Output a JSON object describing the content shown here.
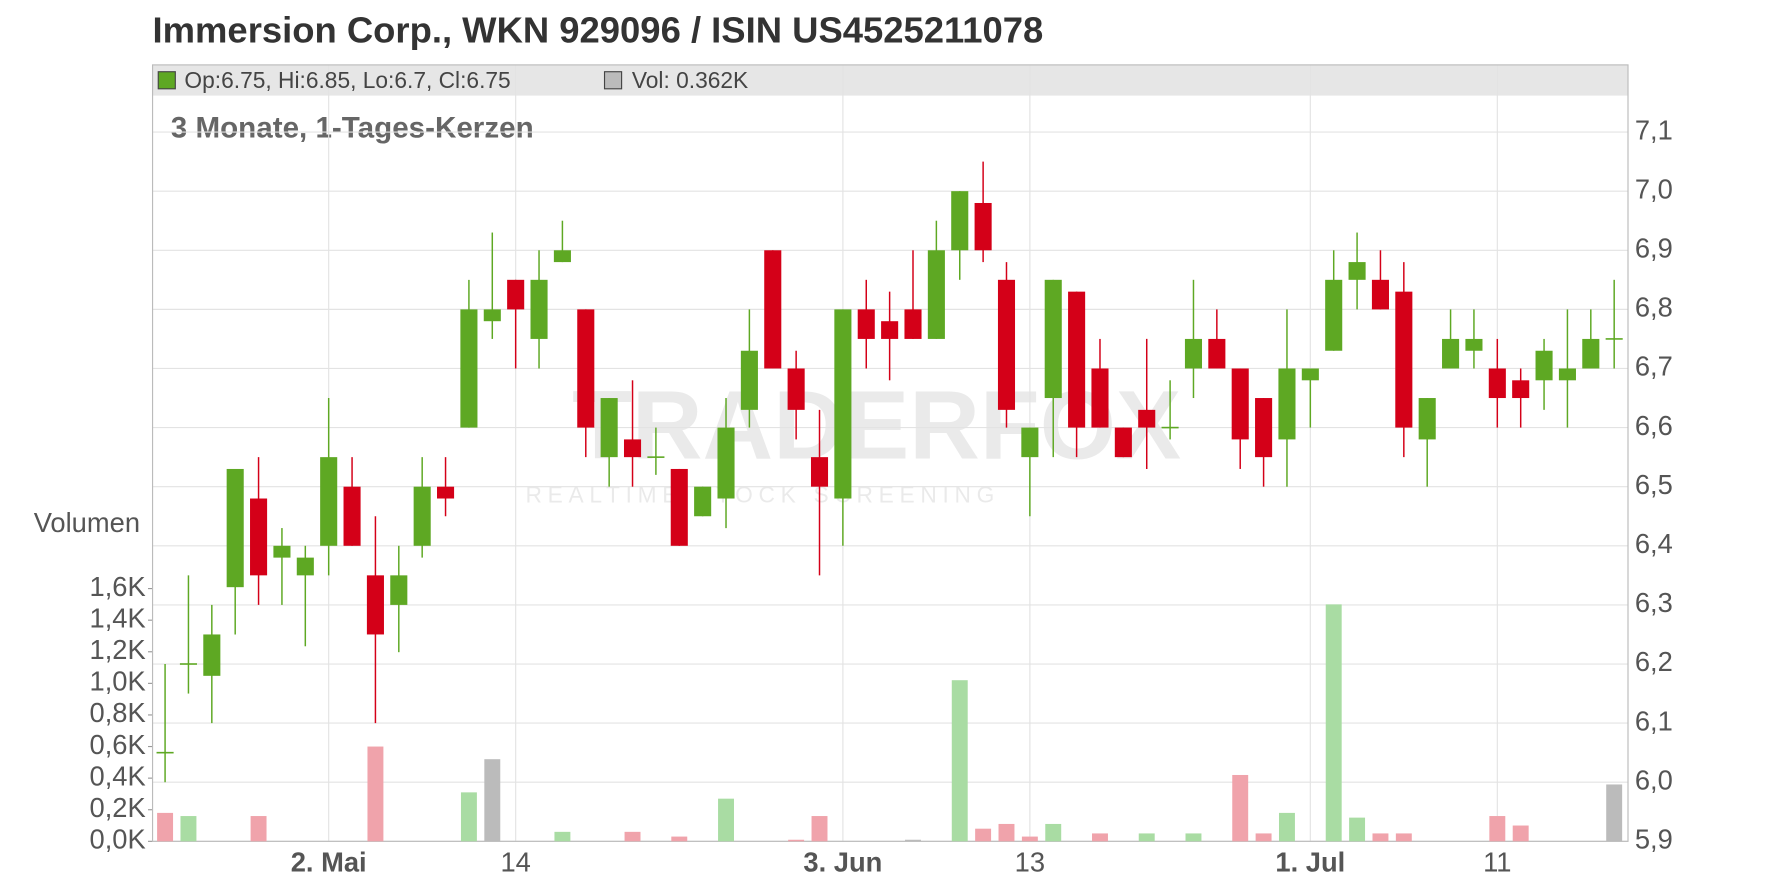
{
  "chart_data": {
    "type": "candlestick",
    "title": "Immersion Corp., WKN 929096 / ISIN US4525211078",
    "subtitle": "3 Monate, 1-Tages-Kerzen",
    "legend_price": "Op:6.75, Hi:6.85, Lo:6.7, Cl:6.75",
    "legend_volume": "Vol: 0.362K",
    "volume_axis_label": "Volumen",
    "watermark": "TRADERFOX",
    "watermark_tagline": "REALTIME STOCK SCREENING",
    "up_color": "#5ea823",
    "down_color": "#d40018",
    "neutral_color": "#bbbbbb",
    "categories": [
      null,
      null,
      null,
      null,
      null,
      null,
      null,
      "2. Mai",
      null,
      null,
      null,
      null,
      null,
      null,
      null,
      "14",
      null,
      null,
      null,
      null,
      null,
      null,
      null,
      null,
      null,
      null,
      null,
      null,
      null,
      "3. Jun",
      null,
      null,
      null,
      null,
      null,
      null,
      null,
      "13",
      null,
      null,
      null,
      null,
      null,
      null,
      null,
      null,
      null,
      null,
      null,
      "1. Jul",
      null,
      null,
      null,
      null,
      null,
      null,
      null,
      "11",
      null,
      null,
      null,
      null,
      null
    ],
    "open": [
      6.05,
      6.2,
      6.18,
      6.33,
      6.48,
      6.38,
      6.35,
      6.4,
      6.5,
      6.35,
      6.3,
      6.4,
      6.5,
      6.6,
      6.78,
      6.85,
      6.75,
      6.88,
      6.8,
      6.55,
      6.58,
      6.55,
      6.53,
      6.45,
      6.48,
      6.63,
      6.9,
      6.7,
      6.55,
      6.48,
      6.8,
      6.78,
      6.8,
      6.75,
      6.9,
      6.98,
      6.85,
      6.55,
      6.65,
      6.83,
      6.7,
      6.6,
      6.63,
      6.6,
      6.7,
      6.75,
      6.7,
      6.65,
      6.58,
      6.68,
      6.73,
      6.85,
      6.85,
      6.83,
      6.58,
      6.7,
      6.73,
      6.7,
      6.68,
      6.68,
      6.68,
      6.7,
      6.75
    ],
    "high": [
      6.2,
      6.35,
      6.3,
      6.53,
      6.55,
      6.43,
      6.4,
      6.65,
      6.55,
      6.45,
      6.4,
      6.55,
      6.55,
      6.85,
      6.93,
      6.85,
      6.9,
      6.95,
      6.8,
      6.65,
      6.68,
      6.6,
      6.53,
      6.5,
      6.65,
      6.8,
      6.9,
      6.73,
      6.63,
      6.8,
      6.85,
      6.83,
      6.9,
      6.95,
      7.0,
      7.05,
      6.88,
      6.6,
      6.85,
      6.83,
      6.75,
      6.6,
      6.75,
      6.68,
      6.85,
      6.8,
      6.7,
      6.65,
      6.8,
      6.7,
      6.9,
      6.93,
      6.9,
      6.88,
      6.65,
      6.8,
      6.8,
      6.75,
      6.7,
      6.75,
      6.8,
      6.8,
      6.85
    ],
    "low": [
      6.0,
      6.15,
      6.1,
      6.25,
      6.3,
      6.3,
      6.23,
      6.35,
      6.4,
      6.1,
      6.22,
      6.38,
      6.45,
      6.6,
      6.75,
      6.7,
      6.7,
      6.88,
      6.55,
      6.5,
      6.5,
      6.52,
      6.4,
      6.45,
      6.43,
      6.6,
      6.7,
      6.58,
      6.35,
      6.4,
      6.7,
      6.68,
      6.75,
      6.75,
      6.85,
      6.88,
      6.6,
      6.45,
      6.55,
      6.55,
      6.6,
      6.55,
      6.53,
      6.58,
      6.65,
      6.7,
      6.53,
      6.5,
      6.5,
      6.6,
      6.73,
      6.8,
      6.8,
      6.55,
      6.5,
      6.7,
      6.7,
      6.6,
      6.6,
      6.63,
      6.6,
      6.7,
      6.7
    ],
    "close": [
      6.05,
      6.2,
      6.25,
      6.53,
      6.35,
      6.4,
      6.38,
      6.55,
      6.4,
      6.25,
      6.35,
      6.5,
      6.48,
      6.8,
      6.8,
      6.8,
      6.85,
      6.9,
      6.6,
      6.65,
      6.55,
      6.55,
      6.4,
      6.5,
      6.6,
      6.73,
      6.7,
      6.63,
      6.5,
      6.8,
      6.75,
      6.75,
      6.75,
      6.9,
      7.0,
      6.9,
      6.63,
      6.6,
      6.85,
      6.6,
      6.6,
      6.55,
      6.6,
      6.6,
      6.75,
      6.7,
      6.58,
      6.55,
      6.7,
      6.7,
      6.85,
      6.88,
      6.8,
      6.6,
      6.65,
      6.75,
      6.75,
      6.65,
      6.65,
      6.73,
      6.7,
      6.75,
      6.75
    ],
    "volume": [
      0.18,
      0.16,
      0,
      0,
      0.16,
      0,
      0,
      0,
      0,
      0.6,
      0,
      0,
      0,
      0.31,
      0.52,
      0,
      0,
      0.06,
      0,
      0,
      0.06,
      0,
      0.03,
      0,
      0.27,
      0,
      0,
      0.01,
      0.16,
      0,
      0,
      0,
      0.01,
      0,
      1.02,
      0.08,
      0.11,
      0.03,
      0.11,
      0,
      0.05,
      0,
      0.05,
      0,
      0.05,
      0,
      0.42,
      0.05,
      0.18,
      0,
      1.5,
      0.15,
      0.05,
      0.05,
      0,
      0,
      0,
      0.16,
      0.1,
      0,
      0,
      0,
      0.36
    ],
    "volume_colors": [
      "#f0a3ab",
      "#a9dca3",
      "#f0a3ab",
      "#a9dca3",
      "#f0a3ab",
      "#a9dca3",
      "#a9dca3",
      "#a9dca3",
      "#f0a3ab",
      "#f0a3ab",
      "#a9dca3",
      "#a9dca3",
      "#f0a3ab",
      "#a9dca3",
      "#bbbbbb",
      "#f0a3ab",
      "#a9dca3",
      "#a9dca3",
      "#f0a3ab",
      "#a9dca3",
      "#f0a3ab",
      "#bbbbbb",
      "#f0a3ab",
      "#a9dca3",
      "#a9dca3",
      "#a9dca3",
      "#f0a3ab",
      "#f0a3ab",
      "#f0a3ab",
      "#a9dca3",
      "#f0a3ab",
      "#f0a3ab",
      "#bbbbbb",
      "#a9dca3",
      "#a9dca3",
      "#f0a3ab",
      "#f0a3ab",
      "#f0a3ab",
      "#a9dca3",
      "#f0a3ab",
      "#f0a3ab",
      "#f0a3ab",
      "#a9dca3",
      "#bbbbbb",
      "#a9dca3",
      "#f0a3ab",
      "#f0a3ab",
      "#f0a3ab",
      "#a9dca3",
      "#a9dca3",
      "#a9dca3",
      "#a9dca3",
      "#f0a3ab",
      "#f0a3ab",
      "#a9dca3",
      "#a9dca3",
      "#a9dca3",
      "#f0a3ab",
      "#f0a3ab",
      "#a9dca3",
      "#a9dca3",
      "#a9dca3",
      "#bbbbbb"
    ],
    "ylim": [
      5.9,
      7.1
    ],
    "yticks": [
      {
        "value": 5.9,
        "label": "5,9"
      },
      {
        "value": 6.0,
        "label": "6,0"
      },
      {
        "value": 6.1,
        "label": "6,1"
      },
      {
        "value": 6.2,
        "label": "6,2"
      },
      {
        "value": 6.3,
        "label": "6,3"
      },
      {
        "value": 6.4,
        "label": "6,4"
      },
      {
        "value": 6.5,
        "label": "6,5"
      },
      {
        "value": 6.6,
        "label": "6,6"
      },
      {
        "value": 6.7,
        "label": "6,7"
      },
      {
        "value": 6.8,
        "label": "6,8"
      },
      {
        "value": 6.9,
        "label": "6,9"
      },
      {
        "value": 7.0,
        "label": "7,0"
      },
      {
        "value": 7.1,
        "label": "7,1"
      }
    ],
    "y2lim": [
      0,
      1.6
    ],
    "y2ticks": [
      {
        "value": 0,
        "label": "0,0K"
      },
      {
        "value": 0.2,
        "label": "0,2K"
      },
      {
        "value": 0.4,
        "label": "0,4K"
      },
      {
        "value": 0.6,
        "label": "0,6K"
      },
      {
        "value": 0.8,
        "label": "0,8K"
      },
      {
        "value": 1.0,
        "label": "1,0K"
      },
      {
        "value": 1.2,
        "label": "1,2K"
      },
      {
        "value": 1.4,
        "label": "1,4K"
      },
      {
        "value": 1.6,
        "label": "1,6K"
      }
    ],
    "grid": true
  }
}
